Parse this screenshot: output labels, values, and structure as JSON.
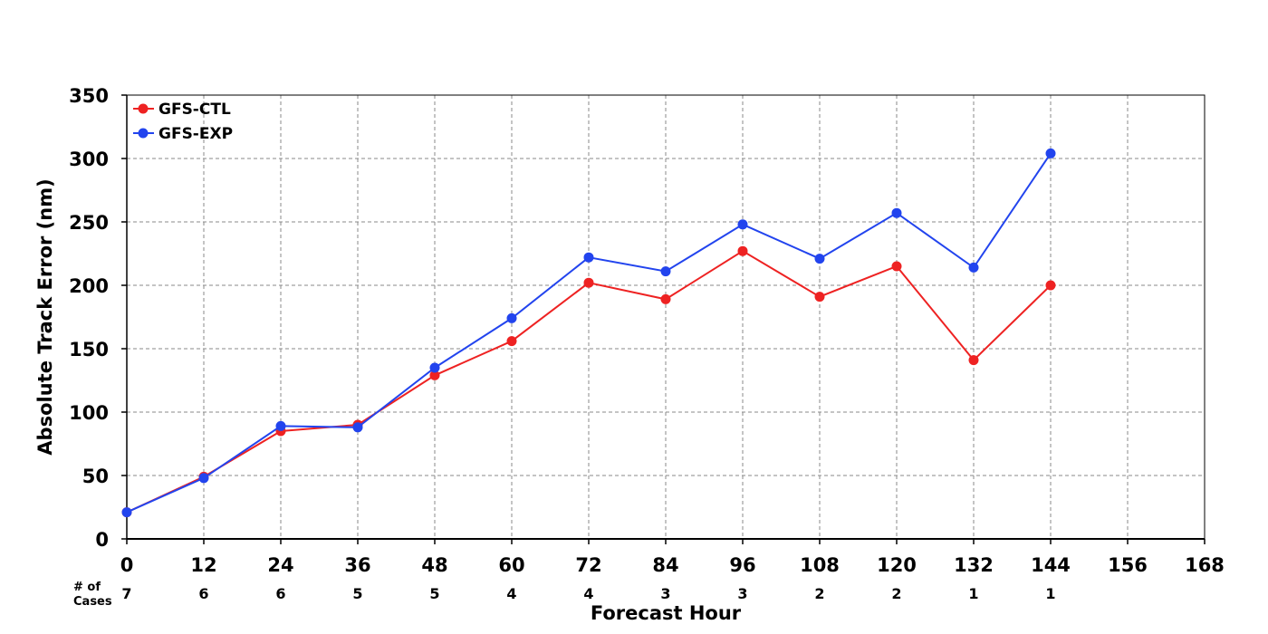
{
  "chart_data": {
    "type": "line",
    "xlabel": "Forecast Hour",
    "ylabel": "Absolute Track Error (nm)",
    "xlim": [
      0,
      168
    ],
    "ylim": [
      0,
      350
    ],
    "x_ticks": [
      "0",
      "12",
      "24",
      "36",
      "48",
      "60",
      "72",
      "84",
      "96",
      "108",
      "120",
      "132",
      "144",
      "156",
      "168"
    ],
    "y_ticks": [
      "0",
      "50",
      "100",
      "150",
      "200",
      "250",
      "300",
      "350"
    ],
    "grid": true,
    "legend_position": "top-left",
    "x": [
      0,
      12,
      24,
      36,
      48,
      60,
      72,
      84,
      96,
      108,
      120,
      132,
      144
    ],
    "series": [
      {
        "name": "GFS-CTL",
        "color": "#ee2222",
        "values": [
          21,
          49,
          85,
          90,
          129,
          156,
          202,
          189,
          227,
          191,
          215,
          141,
          200
        ]
      },
      {
        "name": "GFS-EXP",
        "color": "#2244ee",
        "values": [
          21,
          48,
          89,
          88,
          135,
          174,
          222,
          211,
          248,
          221,
          257,
          214,
          304
        ]
      }
    ],
    "cases": {
      "header_line1": "# of",
      "header_line2": "Cases",
      "values": [
        "7",
        "6",
        "6",
        "5",
        "5",
        "4",
        "4",
        "3",
        "3",
        "2",
        "2",
        "1",
        "1"
      ]
    }
  }
}
